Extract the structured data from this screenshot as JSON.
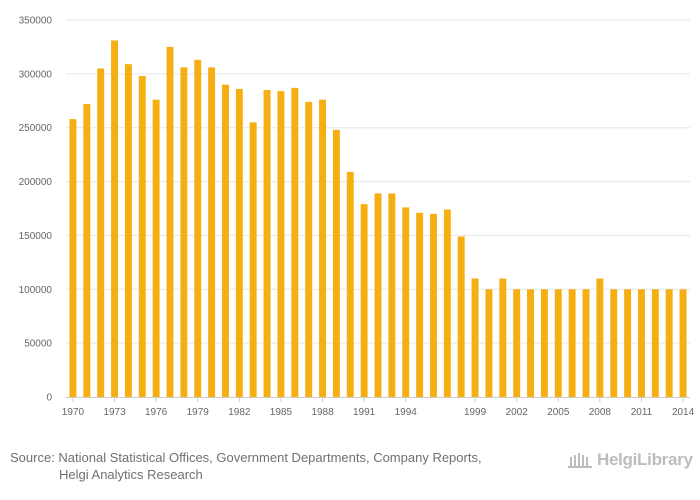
{
  "chart_data": {
    "type": "bar",
    "title": "",
    "xlabel": "",
    "ylabel": "",
    "ylim": [
      0,
      350000
    ],
    "yticks": [
      0,
      50000,
      100000,
      150000,
      200000,
      250000,
      300000,
      350000
    ],
    "grid": true,
    "bar_color": "#F6AE13",
    "categories": [
      "1970",
      "1971",
      "1972",
      "1973",
      "1974",
      "1975",
      "1976",
      "1977",
      "1978",
      "1979",
      "1980",
      "1981",
      "1982",
      "1983",
      "1984",
      "1985",
      "1986",
      "1987",
      "1988",
      "1989",
      "1990",
      "1991",
      "1992",
      "1993",
      "1994",
      "1995",
      "1996",
      "1997",
      "1998",
      "1999",
      "2000",
      "2001",
      "2002",
      "2003",
      "2004",
      "2005",
      "2006",
      "2007",
      "2008",
      "2009",
      "2010",
      "2011",
      "2012",
      "2013",
      "2014"
    ],
    "values": [
      258000,
      272000,
      305000,
      331000,
      309000,
      298000,
      276000,
      325000,
      306000,
      313000,
      306000,
      290000,
      286000,
      255000,
      285000,
      284000,
      287000,
      274000,
      276000,
      248000,
      209000,
      179000,
      189000,
      189000,
      176000,
      171000,
      170000,
      174000,
      149000,
      110000,
      100000,
      110000,
      100000,
      100000,
      100000,
      100000,
      100000,
      100000,
      110000,
      100000,
      100000,
      100000,
      100000,
      100000,
      100000
    ],
    "x_tick_labels": [
      "1970",
      "1973",
      "1976",
      "1979",
      "1982",
      "1985",
      "1988",
      "1991",
      "1994",
      "1999",
      "2002",
      "2005",
      "2008",
      "2011",
      "2014"
    ]
  },
  "footer": {
    "source_line1": "Source: National Statistical Offices, Government Departments, Company Reports,",
    "source_line2": "Helgi Analytics Research",
    "logo_text": "HelgiLibrary",
    "logo_icon": "library-building-icon"
  }
}
